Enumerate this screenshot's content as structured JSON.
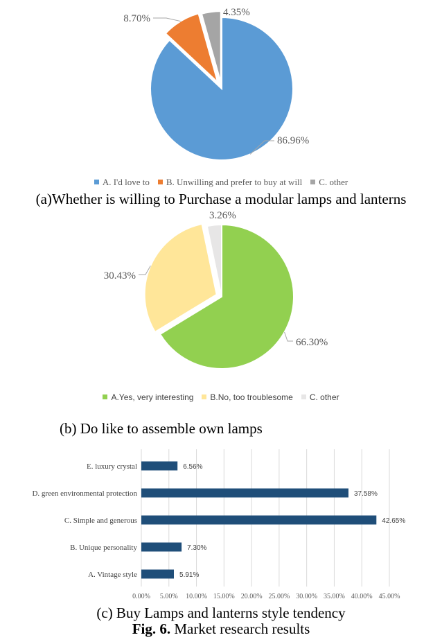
{
  "chart_data": [
    {
      "type": "pie",
      "title": "",
      "slices": [
        {
          "label": "A. I'd love to",
          "value": 86.96,
          "value_label": "86.96%",
          "color": "#5b9bd5"
        },
        {
          "label": "B. Unwilling and prefer to buy at will",
          "value": 8.7,
          "value_label": "8.70%",
          "color": "#ed7d31"
        },
        {
          "label": "C. other",
          "value": 4.35,
          "value_label": "4.35%",
          "color": "#a5a5a5"
        }
      ],
      "legend_position": "bottom"
    },
    {
      "type": "pie",
      "title": "",
      "slices": [
        {
          "label": "A.Yes, very interesting",
          "value": 66.3,
          "value_label": "66.30%",
          "color": "#92d050"
        },
        {
          "label": "B.No, too troublesome",
          "value": 30.43,
          "value_label": "30.43%",
          "color": "#ffe699"
        },
        {
          "label": "C. other",
          "value": 3.26,
          "value_label": "3.26%",
          "color": "#e7e6e6"
        }
      ],
      "legend_position": "bottom"
    },
    {
      "type": "bar",
      "orientation": "horizontal",
      "title": "",
      "categories": [
        "E. luxury crystal",
        "D. green environmental protection",
        "C. Simple and generous",
        "B.  Unique personality",
        "A. Vintage style"
      ],
      "values": [
        6.56,
        37.58,
        42.65,
        7.3,
        5.91
      ],
      "value_labels": [
        "6.56%",
        "37.58%",
        "42.65%",
        "7.30%",
        "5.91%"
      ],
      "xlim": [
        0,
        45
      ],
      "xticks": [
        "0.00%",
        "5.00%",
        "10.00%",
        "15.00%",
        "20.00%",
        "25.00%",
        "30.00%",
        "35.00%",
        "40.00%",
        "45.00%"
      ],
      "bar_color": "#1f4e79",
      "grid": true,
      "xlabel": "",
      "ylabel": ""
    }
  ],
  "captions": {
    "a": "(a)Whether is willing to Purchase a modular lamps and lanterns",
    "b": "(b) Do like to assemble own lamps",
    "c": "(c) Buy Lamps and lanterns style tendency",
    "fig_prefix": "Fig. 6.",
    "fig_text": " Market research results"
  }
}
